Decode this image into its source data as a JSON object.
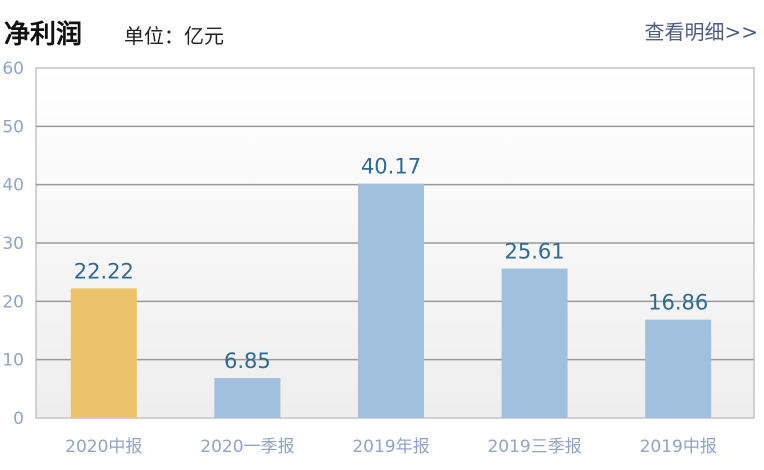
{
  "header": {
    "title": "净利润",
    "unit": "单位：亿元",
    "detail_link": "查看明细>>"
  },
  "colors": {
    "highlight_bar": "#ecc36b",
    "normal_bar": "#a0c0dd",
    "value_label": "#2f6a96",
    "axis_label": "#8fa5c6"
  },
  "chart_data": {
    "type": "bar",
    "categories": [
      "2020中报",
      "2020一季报",
      "2019年报",
      "2019三季报",
      "2019中报"
    ],
    "values": [
      22.22,
      6.85,
      40.17,
      25.61,
      16.86
    ],
    "value_labels": [
      "22.22",
      "6.85",
      "40.17",
      "25.61",
      "16.86"
    ],
    "highlight_index": 0,
    "title": "净利润",
    "xlabel": "",
    "ylabel": "",
    "ylim": [
      0,
      60
    ],
    "yticks": [
      0,
      10,
      20,
      30,
      40,
      50,
      60
    ],
    "grid": true,
    "legend": "none"
  }
}
